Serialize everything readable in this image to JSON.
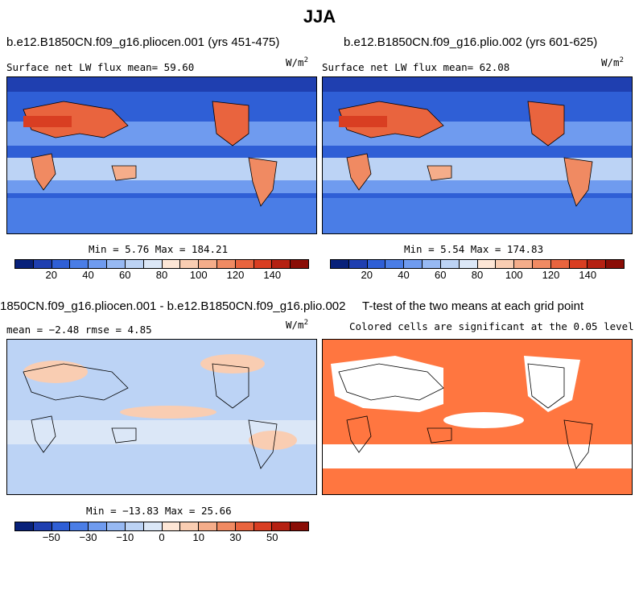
{
  "figure": {
    "title": "JJA"
  },
  "panels": {
    "top_left": {
      "title": "b.e12.B1850CN.f09_g16.pliocen.001 (yrs 451-475)",
      "variable_label": "Surface net LW flux mean=  59.60",
      "units_base": "W/m",
      "units_exp": "2",
      "minmax": "Min =   5.76 Max = 184.21"
    },
    "top_right": {
      "title": "b.e12.B1850CN.f09_g16.plio.002 (yrs 601-625)",
      "variable_label": "Surface net LW flux mean=  62.08",
      "units_base": "W/m",
      "units_exp": "2",
      "minmax": "Min =   5.54 Max = 174.83"
    },
    "bottom_left": {
      "title": "1850CN.f09_g16.pliocen.001 - b.e12.B1850CN.f09_g16.plio.002",
      "stats": "mean =  −2.48    rmse =   4.85",
      "units_base": "W/m",
      "units_exp": "2",
      "minmax": "Min = −13.83 Max =  25.66"
    },
    "bottom_right": {
      "title": "T-test of the two means at each grid point",
      "subtitle": "Colored cells are significant at the 0.05 level"
    }
  },
  "colorbars": {
    "abs": {
      "colors": [
        "#08217a",
        "#1f3fb0",
        "#2f5fd6",
        "#4a7de6",
        "#6f9bef",
        "#97b9f3",
        "#bcd3f5",
        "#dbe7f7",
        "#fde6d6",
        "#f9cdb2",
        "#f5ad8a",
        "#f08a62",
        "#e9643e",
        "#d93e22",
        "#b52112",
        "#8a0d06"
      ],
      "ticks": [
        "20",
        "40",
        "60",
        "80",
        "100",
        "120",
        "140"
      ]
    },
    "diff": {
      "colors": [
        "#08217a",
        "#1f3fb0",
        "#2f5fd6",
        "#4a7de6",
        "#6f9bef",
        "#97b9f3",
        "#bcd3f5",
        "#dbe7f7",
        "#fde6d6",
        "#f9cdb2",
        "#f5ad8a",
        "#f08a62",
        "#e9643e",
        "#d93e22",
        "#b52112",
        "#8a0d06"
      ],
      "ticks": [
        "−50",
        "−30",
        "−10",
        "0",
        "10",
        "30",
        "50"
      ]
    }
  },
  "colors": {
    "ocean_low": "#2f5fd6",
    "ocean_mid": "#6f9bef",
    "warm": "#e9643e",
    "diff_bg": "#bcd3f5",
    "ttest_fill": "#ff7640"
  }
}
